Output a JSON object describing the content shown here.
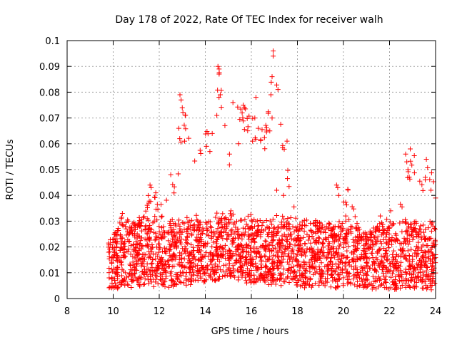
{
  "chart_data": {
    "type": "scatter",
    "title": "Day 178 of 2022, Rate Of TEC Index for receiver walh",
    "xlabel": "GPS time / hours",
    "ylabel": "ROTI / TECUs",
    "xlim": [
      8,
      24
    ],
    "ylim": [
      0,
      0.1
    ],
    "x_ticks": [
      "8",
      "10",
      "12",
      "14",
      "16",
      "18",
      "20",
      "22",
      "24"
    ],
    "y_ticks": [
      "0",
      "0.01",
      "0.02",
      "0.03",
      "0.04",
      "0.05",
      "0.06",
      "0.07",
      "0.08",
      "0.09",
      "0.1"
    ],
    "grid": true,
    "marker": "+",
    "color": "#ff0000",
    "envelope": {
      "x": [
        9.8,
        10.0,
        10.4,
        10.8,
        11.2,
        11.6,
        12.0,
        12.4,
        12.8,
        13.0,
        13.4,
        13.8,
        14.2,
        14.6,
        15.0,
        15.4,
        15.8,
        16.2,
        16.6,
        17.0,
        17.4,
        17.8,
        18.2,
        18.6,
        19.0,
        19.4,
        19.8,
        20.2,
        20.6,
        21.0,
        21.4,
        21.8,
        22.2,
        22.6,
        23.0,
        23.4,
        23.8,
        24.0
      ],
      "upper": [
        0.024,
        0.024,
        0.033,
        0.03,
        0.032,
        0.044,
        0.036,
        0.043,
        0.05,
        0.079,
        0.06,
        0.06,
        0.072,
        0.09,
        0.057,
        0.076,
        0.075,
        0.071,
        0.065,
        0.096,
        0.06,
        0.04,
        0.034,
        0.032,
        0.03,
        0.03,
        0.032,
        0.043,
        0.03,
        0.025,
        0.03,
        0.03,
        0.034,
        0.04,
        0.058,
        0.045,
        0.054,
        0.04
      ],
      "lower": [
        0.004,
        0.003,
        0.004,
        0.004,
        0.005,
        0.004,
        0.005,
        0.004,
        0.005,
        0.005,
        0.005,
        0.006,
        0.006,
        0.007,
        0.008,
        0.007,
        0.006,
        0.006,
        0.005,
        0.005,
        0.005,
        0.005,
        0.004,
        0.004,
        0.005,
        0.004,
        0.004,
        0.005,
        0.004,
        0.004,
        0.003,
        0.004,
        0.003,
        0.004,
        0.004,
        0.004,
        0.003,
        0.003
      ]
    },
    "points": [
      [
        12.9,
        0.079
      ],
      [
        12.95,
        0.077
      ],
      [
        13.0,
        0.074
      ],
      [
        12.85,
        0.066
      ],
      [
        13.1,
        0.061
      ],
      [
        14.55,
        0.09
      ],
      [
        14.6,
        0.089
      ],
      [
        14.6,
        0.087
      ],
      [
        14.65,
        0.079
      ],
      [
        14.5,
        0.071
      ],
      [
        14.3,
        0.064
      ],
      [
        14.2,
        0.057
      ],
      [
        15.2,
        0.076
      ],
      [
        15.65,
        0.075
      ],
      [
        15.7,
        0.074
      ],
      [
        15.6,
        0.072
      ],
      [
        16.2,
        0.078
      ],
      [
        16.15,
        0.07
      ],
      [
        16.3,
        0.066
      ],
      [
        16.05,
        0.061
      ],
      [
        16.95,
        0.096
      ],
      [
        16.95,
        0.094
      ],
      [
        16.9,
        0.086
      ],
      [
        16.85,
        0.079
      ],
      [
        16.9,
        0.07
      ],
      [
        16.8,
        0.065
      ],
      [
        17.55,
        0.061
      ],
      [
        17.1,
        0.042
      ],
      [
        17.4,
        0.04
      ],
      [
        19.7,
        0.044
      ],
      [
        19.75,
        0.043
      ],
      [
        19.8,
        0.04
      ],
      [
        22.9,
        0.058
      ],
      [
        22.7,
        0.056
      ],
      [
        22.75,
        0.053
      ],
      [
        22.8,
        0.05
      ],
      [
        23.6,
        0.054
      ],
      [
        23.55,
        0.046
      ],
      [
        23.8,
        0.042
      ],
      [
        11.6,
        0.044
      ],
      [
        11.65,
        0.043
      ],
      [
        10.4,
        0.033
      ],
      [
        10.35,
        0.031
      ],
      [
        10.65,
        0.03
      ],
      [
        11.85,
        0.041
      ],
      [
        12.5,
        0.048
      ],
      [
        14.05,
        0.059
      ],
      [
        15.05,
        0.056
      ],
      [
        15.45,
        0.06
      ],
      [
        20.1,
        0.032
      ],
      [
        21.6,
        0.032
      ],
      [
        22.05,
        0.034
      ],
      [
        24.0,
        0.039
      ]
    ]
  }
}
